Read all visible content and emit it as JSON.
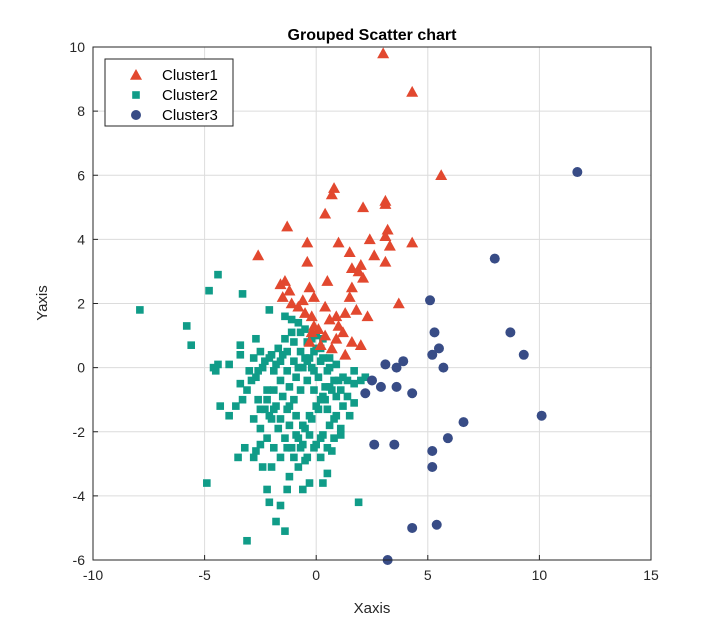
{
  "chart_data": {
    "type": "scatter",
    "title": "Grouped Scatter chart",
    "xlabel": "Xaxis",
    "ylabel": "Yaxis",
    "xlim": [
      -10,
      15
    ],
    "ylim": [
      -6,
      10
    ],
    "xticks": [
      -10,
      -5,
      0,
      5,
      10,
      15
    ],
    "yticks": [
      -6,
      -4,
      -2,
      0,
      2,
      4,
      6,
      8,
      10
    ],
    "grid": true,
    "legend_position": "top-left",
    "series": [
      {
        "name": "Cluster1",
        "marker": "triangle",
        "color": "#e2482f",
        "points": [
          [
            3.0,
            9.8
          ],
          [
            4.3,
            8.6
          ],
          [
            5.6,
            6.0
          ],
          [
            0.8,
            5.6
          ],
          [
            0.7,
            5.4
          ],
          [
            3.1,
            5.2
          ],
          [
            3.1,
            5.1
          ],
          [
            2.1,
            5.0
          ],
          [
            0.4,
            4.8
          ],
          [
            -1.3,
            4.4
          ],
          [
            3.2,
            4.3
          ],
          [
            3.1,
            4.1
          ],
          [
            1.0,
            3.9
          ],
          [
            2.4,
            4.0
          ],
          [
            4.3,
            3.9
          ],
          [
            3.3,
            3.8
          ],
          [
            -0.4,
            3.9
          ],
          [
            1.5,
            3.6
          ],
          [
            -2.6,
            3.5
          ],
          [
            2.6,
            3.5
          ],
          [
            -0.4,
            3.3
          ],
          [
            2.0,
            3.2
          ],
          [
            1.6,
            3.1
          ],
          [
            1.9,
            3.0
          ],
          [
            3.1,
            3.3
          ],
          [
            2.1,
            2.8
          ],
          [
            0.5,
            2.7
          ],
          [
            -1.6,
            2.6
          ],
          [
            -1.4,
            2.7
          ],
          [
            -1.2,
            2.4
          ],
          [
            -0.3,
            2.5
          ],
          [
            1.6,
            2.5
          ],
          [
            -1.5,
            2.2
          ],
          [
            -0.6,
            2.1
          ],
          [
            -1.1,
            2.0
          ],
          [
            -0.1,
            2.2
          ],
          [
            1.5,
            2.2
          ],
          [
            3.7,
            2.0
          ],
          [
            -0.8,
            1.9
          ],
          [
            0.4,
            1.9
          ],
          [
            1.8,
            1.8
          ],
          [
            -0.5,
            1.7
          ],
          [
            -0.2,
            1.6
          ],
          [
            0.6,
            1.5
          ],
          [
            0.9,
            1.6
          ],
          [
            1.3,
            1.7
          ],
          [
            2.3,
            1.6
          ],
          [
            -0.1,
            1.3
          ],
          [
            0.1,
            1.2
          ],
          [
            0.4,
            1.0
          ],
          [
            1.0,
            1.3
          ],
          [
            1.2,
            1.1
          ],
          [
            0.9,
            0.9
          ],
          [
            0.2,
            0.7
          ],
          [
            -0.2,
            1.1
          ],
          [
            1.6,
            0.8
          ],
          [
            2.0,
            0.7
          ],
          [
            1.3,
            0.4
          ],
          [
            0.7,
            0.6
          ],
          [
            -0.3,
            0.8
          ]
        ]
      },
      {
        "name": "Cluster2",
        "marker": "square",
        "color": "#109c88",
        "points": [
          [
            -7.9,
            1.8
          ],
          [
            -4.4,
            2.9
          ],
          [
            -4.8,
            2.4
          ],
          [
            -3.3,
            2.3
          ],
          [
            -5.8,
            1.3
          ],
          [
            -5.6,
            0.7
          ],
          [
            -2.1,
            1.8
          ],
          [
            -1.4,
            1.6
          ],
          [
            -3.4,
            0.7
          ],
          [
            -3.4,
            0.4
          ],
          [
            -4.4,
            0.1
          ],
          [
            -4.5,
            -0.1
          ],
          [
            -4.6,
            0.0
          ],
          [
            -3.9,
            0.1
          ],
          [
            -2.7,
            0.9
          ],
          [
            -2.5,
            0.5
          ],
          [
            -3.4,
            -0.5
          ],
          [
            -3.6,
            -1.2
          ],
          [
            -4.3,
            -1.2
          ],
          [
            -3.9,
            -1.5
          ],
          [
            -3.3,
            -1.0
          ],
          [
            -3.2,
            -2.5
          ],
          [
            -3.5,
            -2.8
          ],
          [
            -2.8,
            -2.8
          ],
          [
            -2.7,
            -2.6
          ],
          [
            -2.5,
            -2.4
          ],
          [
            -2.4,
            -3.1
          ],
          [
            -2.0,
            -3.1
          ],
          [
            -4.9,
            -3.6
          ],
          [
            -2.2,
            -3.8
          ],
          [
            -2.1,
            -4.2
          ],
          [
            -1.3,
            -3.8
          ],
          [
            -1.6,
            -4.3
          ],
          [
            -1.8,
            -4.8
          ],
          [
            -1.4,
            -5.1
          ],
          [
            -3.1,
            -5.4
          ],
          [
            -0.6,
            -3.8
          ],
          [
            -0.3,
            -3.6
          ],
          [
            0.3,
            -3.6
          ],
          [
            0.5,
            -3.3
          ],
          [
            1.9,
            -4.2
          ],
          [
            -1.2,
            -3.4
          ],
          [
            -0.8,
            -3.1
          ],
          [
            -0.5,
            -2.9
          ],
          [
            0.2,
            -2.8
          ],
          [
            0.7,
            -2.6
          ],
          [
            1.1,
            -2.1
          ],
          [
            1.5,
            -1.5
          ],
          [
            1.7,
            -1.1
          ],
          [
            1.4,
            -0.9
          ],
          [
            1.7,
            -0.5
          ],
          [
            2.0,
            -0.4
          ],
          [
            2.2,
            -0.3
          ],
          [
            1.2,
            -0.3
          ],
          [
            0.9,
            0.1
          ],
          [
            0.6,
            0.3
          ],
          [
            0.2,
            0.6
          ],
          [
            -0.2,
            0.9
          ],
          [
            -0.5,
            1.2
          ],
          [
            -0.8,
            1.4
          ],
          [
            -1.1,
            1.1
          ],
          [
            -1.4,
            0.9
          ],
          [
            -1.7,
            0.6
          ],
          [
            -2.0,
            0.4
          ],
          [
            -2.3,
            0.2
          ],
          [
            -2.6,
            -0.1
          ],
          [
            -2.9,
            -0.4
          ],
          [
            -3.1,
            -0.7
          ],
          [
            -2.6,
            -1.0
          ],
          [
            -2.3,
            -1.3
          ],
          [
            -2.0,
            -1.6
          ],
          [
            -1.7,
            -1.9
          ],
          [
            -1.4,
            -2.2
          ],
          [
            -1.1,
            -2.5
          ],
          [
            -0.8,
            -2.2
          ],
          [
            -0.5,
            -1.9
          ],
          [
            -0.2,
            -1.6
          ],
          [
            0.1,
            -1.3
          ],
          [
            0.4,
            -1.0
          ],
          [
            0.7,
            -0.7
          ],
          [
            1.0,
            -0.4
          ],
          [
            -0.1,
            -0.1
          ],
          [
            -0.4,
            0.2
          ],
          [
            -0.7,
            0.5
          ],
          [
            -1.0,
            0.2
          ],
          [
            -1.3,
            -0.1
          ],
          [
            -1.6,
            -0.4
          ],
          [
            -1.9,
            -0.7
          ],
          [
            -2.2,
            -1.0
          ],
          [
            -1.9,
            -1.3
          ],
          [
            -1.6,
            -1.6
          ],
          [
            -1.3,
            -1.3
          ],
          [
            -1.0,
            -1.0
          ],
          [
            -0.7,
            -0.7
          ],
          [
            -0.4,
            -0.4
          ],
          [
            -0.1,
            -0.7
          ],
          [
            0.2,
            -1.0
          ],
          [
            0.5,
            -1.3
          ],
          [
            0.8,
            -1.6
          ],
          [
            1.1,
            -1.9
          ],
          [
            0.8,
            -2.2
          ],
          [
            0.5,
            -2.5
          ],
          [
            0.2,
            -2.2
          ],
          [
            -0.1,
            -2.5
          ],
          [
            -0.4,
            -2.8
          ],
          [
            -0.7,
            -2.5
          ],
          [
            -1.0,
            -2.8
          ],
          [
            -1.3,
            -2.5
          ],
          [
            -1.6,
            -2.8
          ],
          [
            -1.9,
            -2.5
          ],
          [
            -2.2,
            -2.2
          ],
          [
            -2.5,
            -1.9
          ],
          [
            -2.8,
            -1.6
          ],
          [
            -2.5,
            -1.3
          ],
          [
            -2.2,
            -0.7
          ],
          [
            -1.9,
            -0.1
          ],
          [
            -1.6,
            0.2
          ],
          [
            -1.3,
            0.5
          ],
          [
            -1.0,
            0.8
          ],
          [
            -0.7,
            1.1
          ],
          [
            -0.4,
            0.8
          ],
          [
            -0.1,
            0.5
          ],
          [
            0.2,
            0.2
          ],
          [
            0.5,
            -0.1
          ],
          [
            0.8,
            -0.4
          ],
          [
            1.1,
            -0.7
          ],
          [
            1.4,
            -0.4
          ],
          [
            1.7,
            -0.1
          ],
          [
            0.6,
            0.0
          ],
          [
            0.3,
            0.3
          ],
          [
            0.0,
            0.6
          ],
          [
            -0.3,
            0.3
          ],
          [
            -0.6,
            0.0
          ],
          [
            -0.9,
            -0.3
          ],
          [
            -1.2,
            -0.6
          ],
          [
            -1.5,
            -0.9
          ],
          [
            -1.8,
            -1.2
          ],
          [
            -2.1,
            -1.5
          ],
          [
            -1.2,
            -1.8
          ],
          [
            -0.9,
            -2.1
          ],
          [
            -0.6,
            -1.8
          ],
          [
            -0.3,
            -1.5
          ],
          [
            0.0,
            -1.2
          ],
          [
            0.3,
            -0.9
          ],
          [
            0.6,
            -0.6
          ],
          [
            0.9,
            -0.9
          ],
          [
            1.2,
            -1.2
          ],
          [
            0.9,
            -1.5
          ],
          [
            0.6,
            -1.8
          ],
          [
            0.3,
            -2.1
          ],
          [
            0.0,
            -2.4
          ],
          [
            -0.3,
            -2.1
          ],
          [
            -0.6,
            -2.4
          ],
          [
            -0.9,
            -1.5
          ],
          [
            -1.2,
            -1.2
          ],
          [
            -0.8,
            0.0
          ],
          [
            -0.5,
            0.3
          ],
          [
            -0.2,
            0.0
          ],
          [
            0.1,
            -0.3
          ],
          [
            0.4,
            -0.6
          ],
          [
            -1.5,
            0.4
          ],
          [
            -1.8,
            0.1
          ],
          [
            -2.1,
            0.3
          ],
          [
            -2.4,
            0.0
          ],
          [
            -2.7,
            -0.3
          ],
          [
            -3.0,
            -0.1
          ],
          [
            -2.8,
            0.3
          ],
          [
            -1.1,
            1.5
          ],
          [
            0.0,
            1.0
          ],
          [
            0.3,
            0.9
          ]
        ]
      },
      {
        "name": "Cluster3",
        "marker": "circle",
        "color": "#384c86",
        "points": [
          [
            11.7,
            6.1
          ],
          [
            8.0,
            3.4
          ],
          [
            5.1,
            2.1
          ],
          [
            8.7,
            1.1
          ],
          [
            5.3,
            1.1
          ],
          [
            9.3,
            0.4
          ],
          [
            5.5,
            0.6
          ],
          [
            5.2,
            0.4
          ],
          [
            3.9,
            0.2
          ],
          [
            3.1,
            0.1
          ],
          [
            3.6,
            0.0
          ],
          [
            5.7,
            0.0
          ],
          [
            2.5,
            -0.4
          ],
          [
            2.9,
            -0.6
          ],
          [
            3.6,
            -0.6
          ],
          [
            2.2,
            -0.8
          ],
          [
            4.3,
            -0.8
          ],
          [
            10.1,
            -1.5
          ],
          [
            6.6,
            -1.7
          ],
          [
            5.9,
            -2.2
          ],
          [
            2.6,
            -2.4
          ],
          [
            3.5,
            -2.4
          ],
          [
            5.2,
            -2.6
          ],
          [
            5.2,
            -3.1
          ],
          [
            4.3,
            -5.0
          ],
          [
            5.4,
            -4.9
          ],
          [
            3.2,
            -6.0
          ]
        ]
      }
    ]
  }
}
